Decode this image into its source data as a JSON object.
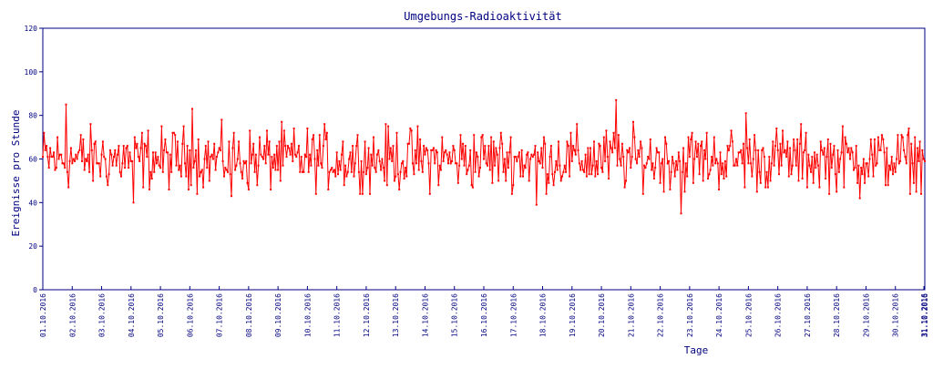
{
  "chart_data": {
    "type": "line",
    "title": "Umgebungs-Radioaktivität",
    "xlabel": "Tage",
    "ylabel": "Ereignisse pro Stunde",
    "ylim": [
      0,
      120
    ],
    "yticks": [
      "0",
      "20",
      "40",
      "60",
      "80",
      "100",
      "120"
    ],
    "xticks": [
      "01.10.2016",
      "02.10.2016",
      "03.10.2016",
      "04.10.2016",
      "05.10.2016",
      "06.10.2016",
      "07.10.2016",
      "08.10.2016",
      "09.10.2016",
      "10.10.2016",
      "11.10.2016",
      "12.10.2016",
      "13.10.2016",
      "14.10.2016",
      "15.10.2016",
      "16.10.2016",
      "17.10.2016",
      "18.10.2016",
      "19.10.2016",
      "20.10.2016",
      "21.10.2016",
      "22.10.2016",
      "23.10.2016",
      "24.10.2016",
      "25.10.2016",
      "26.10.2016",
      "27.10.2016",
      "28.10.2016",
      "29.10.2016",
      "30.10.2016",
      "31.10.2016",
      "31.10.2016"
    ],
    "grid": false,
    "series": [
      {
        "color": "#ff0000",
        "sampling": "hourly",
        "points_per_day": 24,
        "typical_range": [
          50,
          70
        ],
        "mean_approx": 60,
        "notable_points": [
          {
            "day": 0.8,
            "value": 85
          },
          {
            "day": 3.1,
            "value": 40
          },
          {
            "day": 5.1,
            "value": 83
          },
          {
            "day": 6.4,
            "value": 43
          },
          {
            "day": 16.8,
            "value": 39
          },
          {
            "day": 19.5,
            "value": 87
          },
          {
            "day": 21.7,
            "value": 35
          },
          {
            "day": 23.9,
            "value": 81
          },
          {
            "day": 27.8,
            "value": 42
          }
        ]
      }
    ]
  },
  "colors": {
    "axis": "#000080",
    "series": "#ff0000",
    "background": "#ffffff"
  }
}
